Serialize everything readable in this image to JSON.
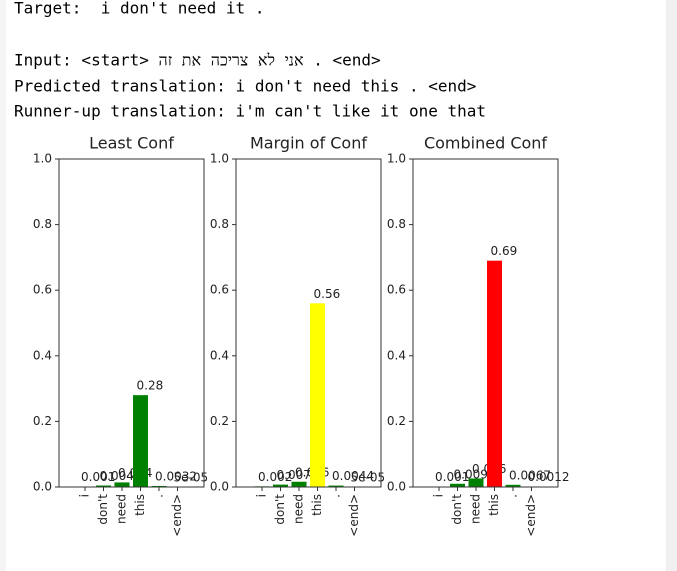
{
  "lines": [
    "Target:  i don't need it .",
    "Input: <start> אני לא צריכה את זה . <end>",
    "Predicted translation: i don't need this . <end>",
    "Runner-up translation: i'm can't like it one that"
  ],
  "chart_data": [
    {
      "type": "bar",
      "title": "Least Conf",
      "categories": [
        "i",
        "don't",
        "need",
        "this",
        ".",
        "<end>"
      ],
      "values": [
        0.001,
        0.0046,
        0.014,
        0.28,
        0.0032,
        5e-05
      ],
      "value_labels": [
        "0.001",
        "0.0046",
        "0.014",
        "0.28",
        "0.0032",
        "5e-05"
      ],
      "colors": [
        "green",
        "green",
        "green",
        "green",
        "green",
        "green"
      ],
      "ylim": [
        0,
        1
      ],
      "yticks": [
        {
          "value": 0,
          "label": "0.0"
        },
        {
          "value": 0.2,
          "label": "0.2"
        },
        {
          "value": 0.4,
          "label": "0.4"
        },
        {
          "value": 0.6,
          "label": "0.6"
        },
        {
          "value": 0.8,
          "label": "0.8"
        },
        {
          "value": 1,
          "label": "1.0"
        }
      ]
    },
    {
      "type": "bar",
      "title": "Margin of Conf",
      "categories": [
        "i",
        "don't",
        "need",
        "this",
        ".",
        "<end>"
      ],
      "values": [
        0.002,
        0.0073,
        0.016,
        0.56,
        0.0044,
        5e-05
      ],
      "value_labels": [
        "0.002",
        "0.0073",
        "0.016",
        "0.56",
        "0.0044",
        "5e-05"
      ],
      "colors": [
        "green",
        "green",
        "green",
        "yellow",
        "green",
        "green"
      ],
      "ylim": [
        0,
        1
      ],
      "yticks": [
        {
          "value": 0,
          "label": "0.0"
        },
        {
          "value": 0.2,
          "label": "0.2"
        },
        {
          "value": 0.4,
          "label": "0.4"
        },
        {
          "value": 0.6,
          "label": "0.6"
        },
        {
          "value": 0.8,
          "label": "0.8"
        },
        {
          "value": 1,
          "label": "1.0"
        }
      ]
    },
    {
      "type": "bar",
      "title": "Combined Conf",
      "categories": [
        "i",
        "don't",
        "need",
        "this",
        ".",
        "<end>"
      ],
      "values": [
        0.001,
        0.0098,
        0.026,
        0.69,
        0.0067,
        0.0012
      ],
      "value_labels": [
        "0.001",
        "0.0098",
        "0.026",
        "0.69",
        "0.0067",
        "0.0012"
      ],
      "colors": [
        "green",
        "green",
        "green",
        "red",
        "green",
        "green"
      ],
      "ylim": [
        0,
        1
      ],
      "yticks": [
        {
          "value": 0,
          "label": "0.0"
        },
        {
          "value": 0.2,
          "label": "0.2"
        },
        {
          "value": 0.4,
          "label": "0.4"
        },
        {
          "value": 0.6,
          "label": "0.6"
        },
        {
          "value": 0.8,
          "label": "0.8"
        },
        {
          "value": 1,
          "label": "1.0"
        }
      ]
    }
  ]
}
